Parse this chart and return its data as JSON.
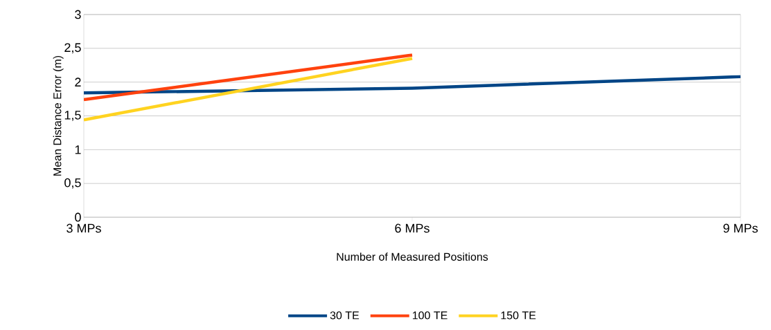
{
  "chart_data": {
    "type": "line",
    "xlabel": "Number of Measured Positions",
    "ylabel": "Mean Distance Error (m)",
    "categories": [
      "3 MPs",
      "6 MPs",
      "9 MPs"
    ],
    "series": [
      {
        "name": "30 TE",
        "color": "#004586",
        "values": [
          1.84,
          1.91,
          2.08
        ]
      },
      {
        "name": "100 TE",
        "color": "#ff420e",
        "values": [
          1.74,
          2.4,
          null
        ]
      },
      {
        "name": "150 TE",
        "color": "#ffd320",
        "values": [
          1.44,
          2.35,
          null
        ]
      }
    ],
    "ylim": [
      0,
      3
    ],
    "yticks": [
      0,
      {
        "value": 0.5,
        "label": "0,5"
      },
      1,
      {
        "value": 1.5,
        "label": "1,5"
      },
      2,
      {
        "value": 2.5,
        "label": "2,5"
      },
      3
    ],
    "grid": "y",
    "legend": "bottom"
  }
}
